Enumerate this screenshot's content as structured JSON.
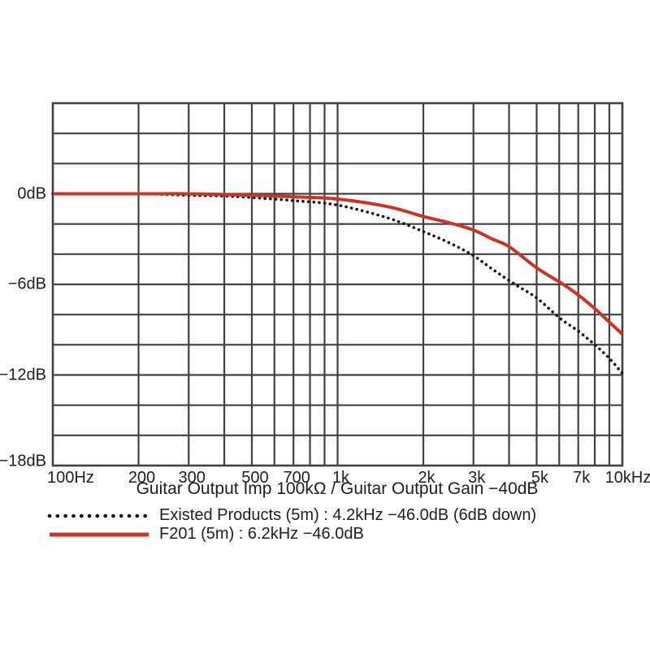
{
  "page": {
    "background": "#ffffff"
  },
  "chart_data": {
    "type": "line",
    "title": "",
    "xlabel": "Guitar Output Imp 100kΩ / Guitar Output Gain −40dB",
    "ylabel": "dB",
    "x_scale": "log",
    "x_min_hz": 100,
    "x_max_hz": 10000,
    "y_min_db": -18,
    "y_max_db": 6,
    "grid_on": true,
    "grid_step_db": 2,
    "grid_color": "#414141",
    "grid_hz": [
      100,
      200,
      300,
      400,
      500,
      600,
      700,
      800,
      900,
      1000,
      2000,
      3000,
      4000,
      5000,
      6000,
      7000,
      8000,
      9000,
      10000
    ],
    "x_ticks": [
      {
        "hz": 100,
        "label": "100Hz"
      },
      {
        "hz": 200,
        "label": "200"
      },
      {
        "hz": 300,
        "label": "300"
      },
      {
        "hz": 500,
        "label": "500"
      },
      {
        "hz": 700,
        "label": "700"
      },
      {
        "hz": 1000,
        "label": "1k"
      },
      {
        "hz": 2000,
        "label": "2k"
      },
      {
        "hz": 3000,
        "label": "3k"
      },
      {
        "hz": 5000,
        "label": "5k"
      },
      {
        "hz": 7000,
        "label": "7k"
      },
      {
        "hz": 10000,
        "label": "10kHz"
      }
    ],
    "y_ticks": [
      {
        "db": 0,
        "label": "0dB"
      },
      {
        "db": -6,
        "label": "−6dB"
      },
      {
        "db": -12,
        "label": "−12dB"
      },
      {
        "db": -18,
        "label": "−18dB"
      }
    ],
    "legend_position": "below",
    "series": [
      {
        "id": "existed-products",
        "name": "Existed Products (5m)",
        "spec": "4.2kHz −46.0dB (6dB down)",
        "label": "Existed Products (5m) : 4.2kHz −46.0dB (6dB down)",
        "color": "#161616",
        "line_style": "dotted",
        "points_hz_db": [
          [
            100,
            0
          ],
          [
            200,
            0
          ],
          [
            300,
            -0.1
          ],
          [
            400,
            -0.15
          ],
          [
            500,
            -0.25
          ],
          [
            700,
            -0.45
          ],
          [
            1000,
            -0.75
          ],
          [
            1500,
            -1.6
          ],
          [
            2000,
            -2.5
          ],
          [
            2500,
            -3.3
          ],
          [
            3000,
            -4.1
          ],
          [
            3500,
            -5.0
          ],
          [
            4200,
            -6.0
          ],
          [
            5000,
            -6.9
          ],
          [
            6000,
            -8.2
          ],
          [
            7000,
            -9.1
          ],
          [
            8000,
            -10.0
          ],
          [
            9000,
            -10.9
          ],
          [
            10000,
            -11.9
          ]
        ]
      },
      {
        "id": "f201",
        "name": "F201 (5m)",
        "spec": "6.2kHz −46.0dB",
        "label": "F201 (5m) : 6.2kHz −46.0dB",
        "color": "#cc3526",
        "line_style": "solid",
        "points_hz_db": [
          [
            100,
            0
          ],
          [
            200,
            0
          ],
          [
            300,
            0
          ],
          [
            400,
            -0.05
          ],
          [
            500,
            -0.1
          ],
          [
            700,
            -0.2
          ],
          [
            1000,
            -0.35
          ],
          [
            1500,
            -0.85
          ],
          [
            2000,
            -1.5
          ],
          [
            2500,
            -1.95
          ],
          [
            3000,
            -2.4
          ],
          [
            3500,
            -3.0
          ],
          [
            4000,
            -3.5
          ],
          [
            5000,
            -4.9
          ],
          [
            6200,
            -6.0
          ],
          [
            7000,
            -6.7
          ],
          [
            8000,
            -7.6
          ],
          [
            9000,
            -8.5
          ],
          [
            10000,
            -9.3
          ]
        ]
      }
    ]
  }
}
